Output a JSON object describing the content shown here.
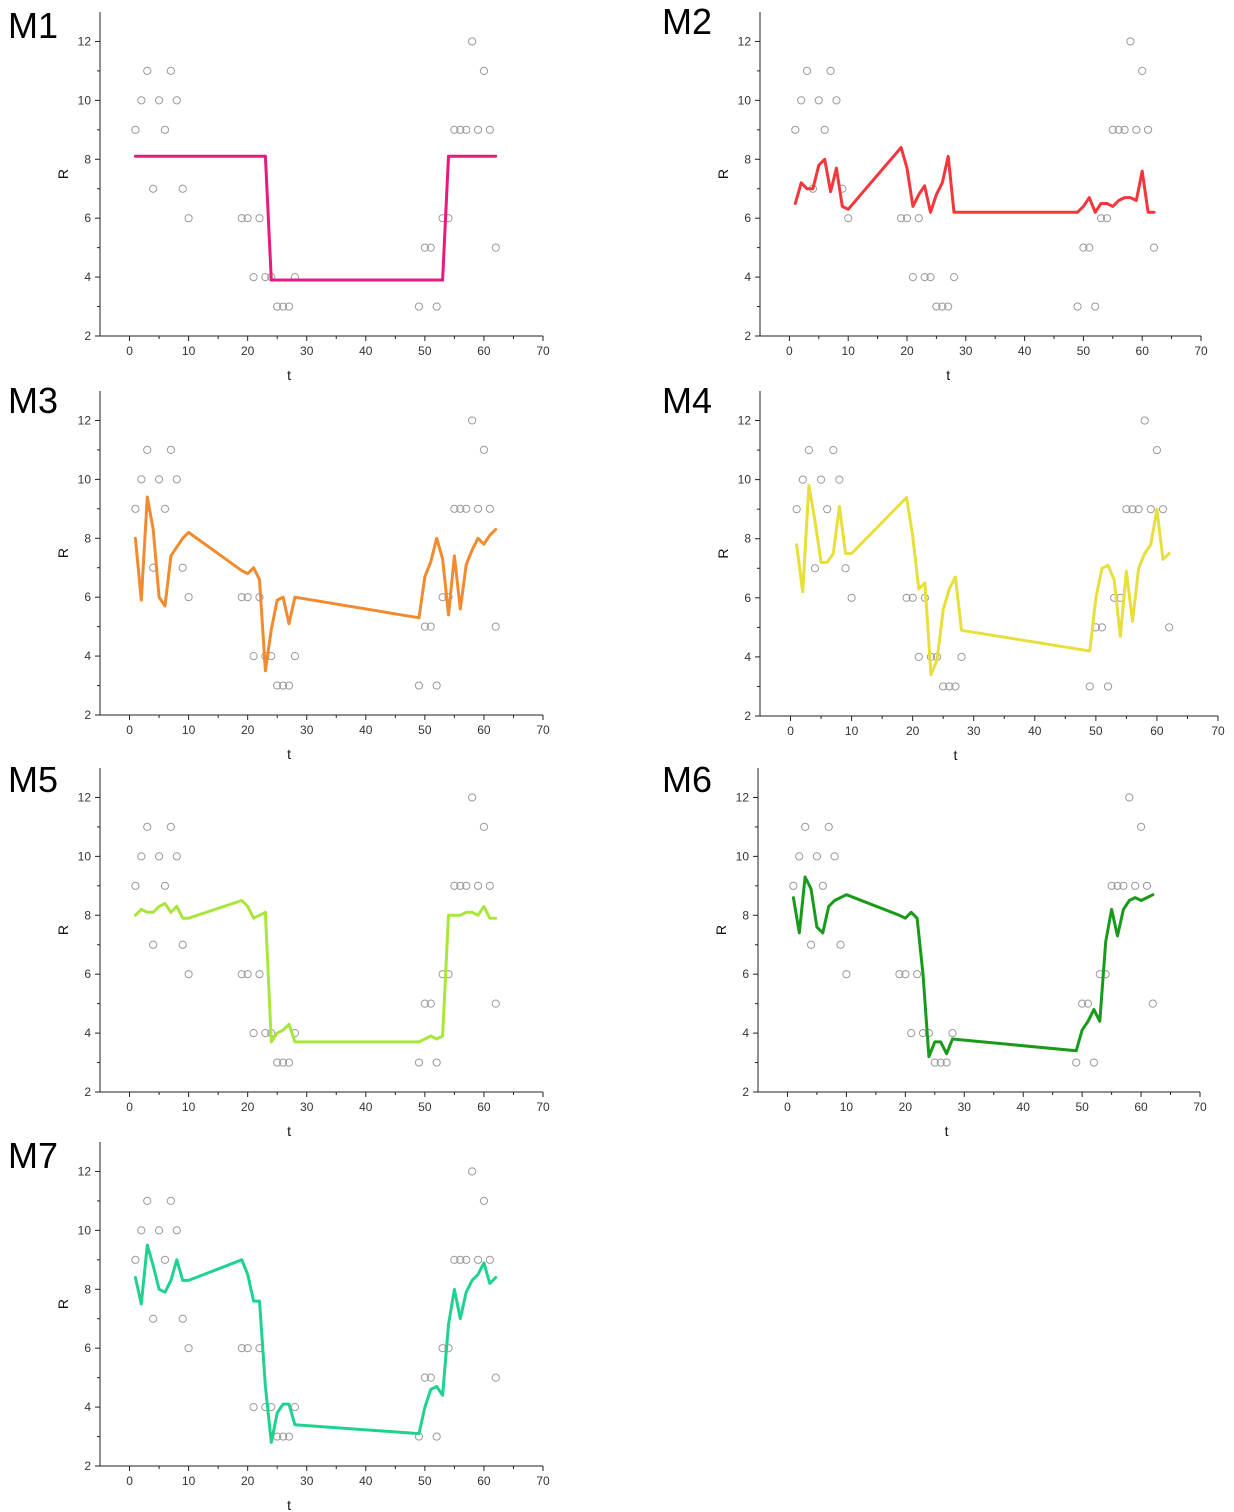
{
  "chart_data": [
    {
      "type": "scatter+line",
      "title": "M1",
      "xlabel": "t",
      "ylabel": "R",
      "xlim": [
        -5,
        70
      ],
      "ylim": [
        2,
        13
      ],
      "xticks": [
        0,
        10,
        20,
        30,
        40,
        50,
        60,
        70
      ],
      "yticks": [
        2,
        4,
        6,
        8,
        10,
        12
      ],
      "grid": false,
      "fit": {
        "color": "#e8197e",
        "x": [
          1,
          23,
          24,
          53,
          54,
          62
        ],
        "y": [
          8.1,
          8.1,
          3.9,
          3.9,
          8.1,
          8.1
        ]
      }
    },
    {
      "type": "scatter+line",
      "title": "M2",
      "xlabel": "t",
      "ylabel": "R",
      "xlim": [
        -5,
        70
      ],
      "ylim": [
        2,
        13
      ],
      "xticks": [
        0,
        10,
        20,
        30,
        40,
        50,
        60,
        70
      ],
      "yticks": [
        2,
        4,
        6,
        8,
        10,
        12
      ],
      "grid": false,
      "fit": {
        "color": "#f5373c",
        "x": [
          1,
          2,
          3,
          4,
          5,
          6,
          7,
          8,
          9,
          10,
          19,
          20,
          21,
          22,
          23,
          24,
          25,
          26,
          27,
          28,
          49,
          50,
          51,
          52,
          53,
          54,
          55,
          56,
          57,
          58,
          59,
          60,
          61,
          62
        ],
        "y": [
          6.5,
          7.2,
          7.0,
          7.0,
          7.8,
          8.0,
          6.9,
          7.7,
          6.4,
          6.3,
          8.4,
          7.7,
          6.4,
          6.8,
          7.1,
          6.2,
          6.8,
          7.2,
          8.1,
          6.2,
          6.2,
          6.4,
          6.7,
          6.2,
          6.5,
          6.5,
          6.4,
          6.6,
          6.7,
          6.7,
          6.6,
          7.6,
          6.2,
          6.2
        ]
      }
    },
    {
      "type": "scatter+line",
      "title": "M3",
      "xlabel": "t",
      "ylabel": "R",
      "xlim": [
        -5,
        70
      ],
      "ylim": [
        2,
        13
      ],
      "xticks": [
        0,
        10,
        20,
        30,
        40,
        50,
        60,
        70
      ],
      "yticks": [
        2,
        4,
        6,
        8,
        10,
        12
      ],
      "grid": false,
      "fit": {
        "color": "#f28a2e",
        "x": [
          1,
          2,
          3,
          4,
          5,
          6,
          7,
          8,
          9,
          10,
          19,
          20,
          21,
          22,
          23,
          24,
          25,
          26,
          27,
          28,
          49,
          50,
          51,
          52,
          53,
          54,
          55,
          56,
          57,
          58,
          59,
          60,
          61,
          62
        ],
        "y": [
          8.0,
          5.9,
          9.4,
          8.3,
          6.0,
          5.7,
          7.4,
          7.7,
          8.0,
          8.2,
          6.9,
          6.8,
          7.0,
          6.6,
          3.5,
          4.9,
          5.9,
          6.0,
          5.1,
          6.0,
          5.3,
          6.7,
          7.2,
          8.0,
          7.3,
          5.4,
          7.4,
          5.6,
          7.1,
          7.6,
          8.0,
          7.8,
          8.1,
          8.3
        ]
      }
    },
    {
      "type": "scatter+line",
      "title": "M4",
      "xlabel": "t",
      "ylabel": "R",
      "xlim": [
        -5,
        70
      ],
      "ylim": [
        2,
        13
      ],
      "xticks": [
        0,
        10,
        20,
        30,
        40,
        50,
        60,
        70
      ],
      "yticks": [
        2,
        4,
        6,
        8,
        10,
        12
      ],
      "grid": false,
      "fit": {
        "color": "#e8df3a",
        "x": [
          1,
          2,
          3,
          4,
          5,
          6,
          7,
          8,
          9,
          10,
          19,
          20,
          21,
          22,
          23,
          24,
          25,
          26,
          27,
          28,
          49,
          50,
          51,
          52,
          53,
          54,
          55,
          56,
          57,
          58,
          59,
          60,
          61,
          62
        ],
        "y": [
          7.8,
          6.2,
          9.8,
          8.6,
          7.2,
          7.2,
          7.5,
          9.1,
          7.5,
          7.5,
          9.4,
          8.1,
          6.3,
          6.5,
          3.4,
          3.9,
          5.6,
          6.3,
          6.7,
          4.9,
          4.2,
          6.0,
          7.0,
          7.1,
          6.6,
          4.7,
          6.9,
          5.2,
          7.0,
          7.5,
          7.8,
          9.0,
          7.3,
          7.5
        ]
      }
    },
    {
      "type": "scatter+line",
      "title": "M5",
      "xlabel": "t",
      "ylabel": "R",
      "xlim": [
        -5,
        70
      ],
      "ylim": [
        2,
        13
      ],
      "xticks": [
        0,
        10,
        20,
        30,
        40,
        50,
        60,
        70
      ],
      "yticks": [
        2,
        4,
        6,
        8,
        10,
        12
      ],
      "grid": false,
      "fit": {
        "color": "#a8e63c",
        "x": [
          1,
          2,
          3,
          4,
          5,
          6,
          7,
          8,
          9,
          10,
          19,
          20,
          21,
          22,
          23,
          24,
          25,
          26,
          27,
          28,
          49,
          50,
          51,
          52,
          53,
          54,
          55,
          56,
          57,
          58,
          59,
          60,
          61,
          62
        ],
        "y": [
          8.0,
          8.2,
          8.1,
          8.1,
          8.3,
          8.4,
          8.1,
          8.3,
          7.9,
          7.9,
          8.5,
          8.3,
          7.9,
          8.0,
          8.1,
          3.7,
          4.0,
          4.1,
          4.3,
          3.7,
          3.7,
          3.8,
          3.9,
          3.8,
          3.9,
          8.0,
          8.0,
          8.0,
          8.1,
          8.1,
          8.0,
          8.3,
          7.9,
          7.9
        ]
      }
    },
    {
      "type": "scatter+line",
      "title": "M6",
      "xlabel": "t",
      "ylabel": "R",
      "xlim": [
        -5,
        70
      ],
      "ylim": [
        2,
        13
      ],
      "xticks": [
        0,
        10,
        20,
        30,
        40,
        50,
        60,
        70
      ],
      "yticks": [
        2,
        4,
        6,
        8,
        10,
        12
      ],
      "grid": false,
      "fit": {
        "color": "#1a9a1a",
        "x": [
          1,
          2,
          3,
          4,
          5,
          6,
          7,
          8,
          9,
          10,
          19,
          20,
          21,
          22,
          23,
          24,
          25,
          26,
          27,
          28,
          49,
          50,
          51,
          52,
          53,
          54,
          55,
          56,
          57,
          58,
          59,
          60,
          61,
          62
        ],
        "y": [
          8.6,
          7.4,
          9.3,
          8.9,
          7.6,
          7.4,
          8.3,
          8.5,
          8.6,
          8.7,
          8.0,
          7.9,
          8.1,
          7.9,
          6.0,
          3.2,
          3.7,
          3.7,
          3.3,
          3.8,
          3.4,
          4.1,
          4.4,
          4.8,
          4.4,
          7.1,
          8.2,
          7.3,
          8.2,
          8.5,
          8.6,
          8.5,
          8.6,
          8.7
        ]
      }
    },
    {
      "type": "scatter+line",
      "title": "M7",
      "xlabel": "t",
      "ylabel": "R",
      "xlim": [
        -5,
        70
      ],
      "ylim": [
        2,
        13
      ],
      "xticks": [
        0,
        10,
        20,
        30,
        40,
        50,
        60,
        70
      ],
      "yticks": [
        2,
        4,
        6,
        8,
        10,
        12
      ],
      "grid": false,
      "fit": {
        "color": "#1fd38f",
        "x": [
          1,
          2,
          3,
          4,
          5,
          6,
          7,
          8,
          9,
          10,
          19,
          20,
          21,
          22,
          23,
          24,
          25,
          26,
          27,
          28,
          49,
          50,
          51,
          52,
          53,
          54,
          55,
          56,
          57,
          58,
          59,
          60,
          61,
          62
        ],
        "y": [
          8.4,
          7.5,
          9.5,
          8.8,
          8.0,
          7.9,
          8.3,
          9.0,
          8.3,
          8.3,
          9.0,
          8.5,
          7.6,
          7.6,
          4.7,
          2.8,
          3.8,
          4.1,
          4.1,
          3.4,
          3.1,
          4.0,
          4.6,
          4.7,
          4.4,
          6.8,
          8.0,
          7.0,
          7.9,
          8.3,
          8.5,
          8.9,
          8.2,
          8.4
        ]
      }
    }
  ],
  "observations": {
    "x": [
      1,
      2,
      3,
      4,
      5,
      6,
      7,
      8,
      9,
      10,
      19,
      20,
      22,
      21,
      23,
      24,
      25,
      26,
      27,
      28,
      49,
      50,
      51,
      52,
      53,
      54,
      55,
      56,
      57,
      58,
      59,
      60,
      61,
      62
    ],
    "y": [
      9,
      10,
      11,
      7,
      10,
      9,
      11,
      10,
      7,
      6,
      6,
      6,
      6,
      4,
      4,
      4,
      3,
      3,
      3,
      4,
      3,
      5,
      5,
      3,
      6,
      6,
      9,
      9,
      9,
      12,
      9,
      11,
      9,
      5
    ]
  },
  "colors": {
    "observation_marker": "#9a9a9a",
    "axis": "#222222"
  }
}
